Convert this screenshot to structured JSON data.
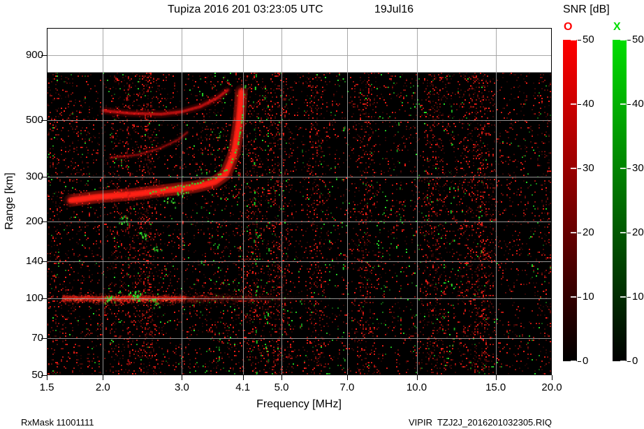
{
  "header": {
    "title": "Tupiza 2016 201 03:23:05 UTC",
    "date": "19Jul16",
    "colorbar_title": "SNR [dB]"
  },
  "footer": {
    "rx_mask": "RxMask 11001111",
    "file_label": "VIPIR  TZJ2J_2016201032305.RIQ"
  },
  "colorbars": {
    "o": {
      "label": "O",
      "color": "#ff0000",
      "ticks": [
        0,
        10,
        20,
        30,
        40,
        50
      ]
    },
    "x": {
      "label": "X",
      "color": "#00dd00",
      "ticks": [
        0,
        10,
        20,
        30,
        40,
        50
      ]
    }
  },
  "chart_data": {
    "type": "heatmap",
    "title": "Tupiza ionogram SNR, 2016 day 201 03:23:05 UTC",
    "xlabel": "Frequency [MHz]",
    "ylabel": "Range [km]",
    "value_label": "SNR [dB]",
    "value_range": [
      0,
      50
    ],
    "x_scale": "log",
    "y_scale": "log",
    "x_range": [
      1.5,
      20
    ],
    "y_range": [
      50,
      1150
    ],
    "data_max_range_km": 770,
    "critical_frequency_mhz": 4.1,
    "x_ticks": [
      {
        "v": 1.5,
        "label": "1.5"
      },
      {
        "v": 2,
        "label": "2.0"
      },
      {
        "v": 3,
        "label": "3.0"
      },
      {
        "v": 4.1,
        "label": "4.1"
      },
      {
        "v": 5,
        "label": "5.0"
      },
      {
        "v": 7,
        "label": "7.0"
      },
      {
        "v": 10,
        "label": "10.0"
      },
      {
        "v": 15,
        "label": "15.0"
      },
      {
        "v": 20,
        "label": "20.0"
      }
    ],
    "y_ticks": [
      {
        "v": 50,
        "label": "50"
      },
      {
        "v": 70,
        "label": "70"
      },
      {
        "v": 100,
        "label": "100"
      },
      {
        "v": 140,
        "label": "140"
      },
      {
        "v": 200,
        "label": "200"
      },
      {
        "v": 300,
        "label": "300"
      },
      {
        "v": 500,
        "label": "500"
      },
      {
        "v": 900,
        "label": "900"
      }
    ],
    "grid_x": [
      2,
      3,
      4.1,
      5,
      7,
      10,
      15
    ],
    "grid_y": [
      70,
      100,
      140,
      200,
      300,
      500,
      900
    ],
    "traces": [
      {
        "name": "F-region O-mode",
        "mode": "O",
        "color": "#ff2418",
        "width": 5,
        "alpha": 0.95,
        "style": "fuzzy",
        "points": [
          [
            1.69,
            242
          ],
          [
            1.95,
            250
          ],
          [
            2.33,
            256
          ],
          [
            2.79,
            266
          ],
          [
            3.21,
            274
          ],
          [
            3.55,
            286
          ],
          [
            3.75,
            306
          ],
          [
            3.92,
            370
          ],
          [
            4.01,
            475
          ],
          [
            4.05,
            574
          ],
          [
            4.07,
            660
          ]
        ]
      },
      {
        "name": "F-region second-hop O-mode",
        "mode": "O",
        "color": "#e01616",
        "width": 3.2,
        "alpha": 0.5,
        "style": "fuzzy",
        "points": [
          [
            2.0,
            545
          ],
          [
            2.3,
            532
          ],
          [
            2.7,
            528
          ],
          [
            3.0,
            540
          ],
          [
            3.3,
            566
          ],
          [
            3.6,
            612
          ],
          [
            3.82,
            662
          ]
        ]
      },
      {
        "name": "oblique mixed echo",
        "mode": "O",
        "color": "#d01414",
        "width": 2.4,
        "alpha": 0.4,
        "style": "fuzzy",
        "points": [
          [
            2.08,
            356
          ],
          [
            2.4,
            366
          ],
          [
            2.7,
            390
          ],
          [
            2.95,
            420
          ],
          [
            3.1,
            452
          ]
        ]
      },
      {
        "name": "F-region X-mode",
        "mode": "X",
        "color": "#2ce62c",
        "width": 2.4,
        "alpha": 0.9,
        "style": "dots",
        "points": [
          [
            2.55,
            262
          ],
          [
            2.9,
            272
          ],
          [
            3.3,
            286
          ],
          [
            3.62,
            302
          ],
          [
            3.85,
            335
          ],
          [
            4.0,
            400
          ],
          [
            4.08,
            500
          ],
          [
            4.12,
            600
          ],
          [
            4.16,
            700
          ]
        ]
      }
    ],
    "e_region": {
      "range_km": 100,
      "f_start": 1.62,
      "f_strong_end": 3.05,
      "f_end": 5.8,
      "core_alpha": 0.85
    },
    "green_clusters": [
      {
        "f": 2.05,
        "r": 100,
        "n": 16
      },
      {
        "f": 2.35,
        "r": 103,
        "n": 24
      },
      {
        "f": 2.6,
        "r": 97,
        "n": 12
      },
      {
        "f": 2.2,
        "r": 205,
        "n": 12
      },
      {
        "f": 2.45,
        "r": 178,
        "n": 10
      },
      {
        "f": 2.62,
        "r": 157,
        "n": 8
      },
      {
        "f": 2.82,
        "r": 240,
        "n": 8
      },
      {
        "f": 3.0,
        "r": 262,
        "n": 10
      }
    ],
    "rfi_streaks": [
      {
        "f": 2.27,
        "density": 0.45,
        "color": "#cc1414"
      },
      {
        "f": 3.3,
        "density": 0.05,
        "color": "#28e628"
      },
      {
        "f": 3.62,
        "density": 0.07,
        "color": "#28e628"
      },
      {
        "f": 4.37,
        "density": 0.12,
        "color": "#28e628"
      },
      {
        "f": 4.62,
        "density": 0.05,
        "color": "#28e628"
      },
      {
        "f": 5.5,
        "density": 0.05,
        "color": "#28e628"
      },
      {
        "f": 6.85,
        "density": 0.05,
        "color": "#28e628"
      },
      {
        "f": 9.1,
        "density": 0.04,
        "color": "#28e628"
      },
      {
        "f": 12.0,
        "density": 0.06,
        "color": "#28e628"
      },
      {
        "f": 13.8,
        "density": 0.05,
        "color": "#28e628"
      }
    ],
    "noise": {
      "seed": 1607,
      "red_density": 0.16,
      "green_density": 0.012
    }
  }
}
